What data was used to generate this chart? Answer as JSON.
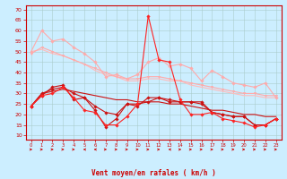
{
  "x": [
    0,
    1,
    2,
    3,
    4,
    5,
    6,
    7,
    8,
    9,
    10,
    11,
    12,
    13,
    14,
    15,
    16,
    17,
    18,
    19,
    20,
    21,
    22,
    23
  ],
  "series": [
    {
      "color": "#ffaaaa",
      "linewidth": 0.8,
      "marker": "D",
      "markersize": 1.8,
      "values": [
        50,
        60,
        55,
        56,
        52,
        49,
        45,
        38,
        39,
        37,
        39,
        45,
        47,
        43,
        44,
        42,
        36,
        41,
        38,
        35,
        34,
        33,
        35,
        28
      ]
    },
    {
      "color": "#ffaaaa",
      "linewidth": 0.8,
      "marker": "v",
      "markersize": 1.8,
      "values": [
        49,
        52,
        50,
        48,
        46,
        44,
        42,
        40,
        38,
        37,
        37,
        38,
        38,
        37,
        36,
        35,
        34,
        33,
        32,
        31,
        30,
        30,
        29,
        29
      ]
    },
    {
      "color": "#ffbbbb",
      "linewidth": 0.8,
      "marker": null,
      "markersize": 0,
      "values": [
        50,
        51,
        49,
        48,
        46,
        44,
        41,
        39,
        38,
        36,
        36,
        37,
        37,
        36,
        36,
        34,
        33,
        32,
        31,
        30,
        29,
        29,
        28,
        28
      ]
    },
    {
      "color": "#cc1111",
      "linewidth": 0.8,
      "marker": "D",
      "markersize": 1.8,
      "values": [
        24,
        29,
        33,
        34,
        27,
        28,
        22,
        14,
        18,
        25,
        24,
        28,
        28,
        27,
        26,
        26,
        26,
        21,
        20,
        19,
        19,
        15,
        15,
        18
      ]
    },
    {
      "color": "#cc1111",
      "linewidth": 0.8,
      "marker": null,
      "markersize": 0,
      "values": [
        24,
        30,
        31,
        32,
        31,
        30,
        29,
        28,
        27,
        27,
        26,
        26,
        26,
        25,
        25,
        24,
        23,
        22,
        22,
        21,
        20,
        20,
        19,
        19
      ]
    },
    {
      "color": "#cc1111",
      "linewidth": 0.8,
      "marker": "D",
      "markersize": 1.8,
      "values": [
        24,
        30,
        32,
        33,
        30,
        28,
        24,
        21,
        20,
        25,
        25,
        26,
        28,
        26,
        26,
        26,
        25,
        21,
        20,
        19,
        19,
        15,
        15,
        18
      ]
    },
    {
      "color": "#ff2222",
      "linewidth": 0.8,
      "marker": "D",
      "markersize": 1.8,
      "values": [
        24,
        29,
        30,
        33,
        28,
        22,
        21,
        15,
        15,
        19,
        25,
        67,
        46,
        45,
        27,
        20,
        20,
        21,
        18,
        17,
        16,
        14,
        15,
        18
      ]
    }
  ],
  "arrow_directions": [
    1,
    1,
    1,
    1,
    1,
    -1,
    -1,
    1,
    1,
    1,
    1,
    1,
    1,
    -1,
    1,
    1,
    1,
    1,
    1,
    1,
    1,
    1,
    1,
    1
  ],
  "xlabel": "Vent moyen/en rafales ( km/h )",
  "ylabel_ticks": [
    10,
    15,
    20,
    25,
    30,
    35,
    40,
    45,
    50,
    55,
    60,
    65,
    70
  ],
  "ylim": [
    8,
    72
  ],
  "xlim": [
    -0.5,
    23.5
  ],
  "bgcolor": "#cceeff",
  "grid_color": "#aacccc",
  "tick_color": "#cc0000",
  "label_color": "#cc0000",
  "arrow_color": "#cc0000"
}
